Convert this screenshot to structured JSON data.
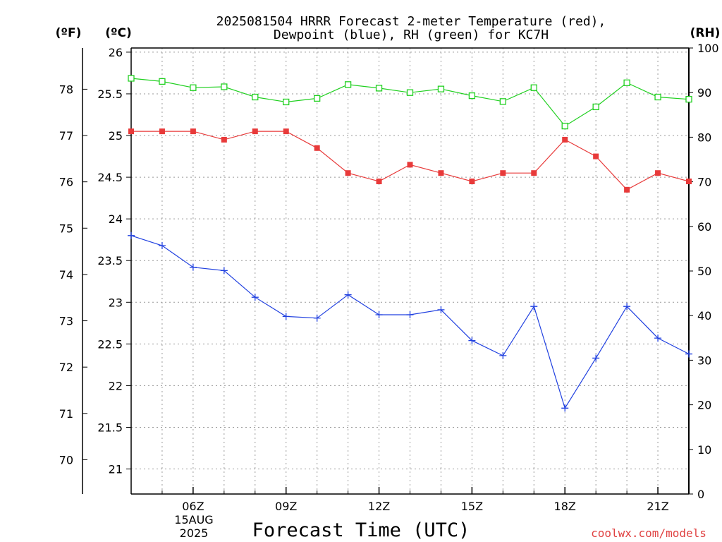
{
  "title_line1": "2025081504 HRRR Forecast 2-meter Temperature (red),",
  "title_line2": "Dewpoint (blue), RH (green) for KC7H",
  "axis_unit_f": "(ºF)",
  "axis_unit_c": "(ºC)",
  "axis_unit_rh": "(RH)",
  "x_axis_title": "Forecast Time (UTC)",
  "date_label_day": "15AUG",
  "date_label_year": "2025",
  "credit": "coolwx.com/models",
  "colors": {
    "temperature": "#e83a3a",
    "dewpoint": "#2040e0",
    "rh": "#20d020",
    "grid": "#999999",
    "credit": "#e04040"
  },
  "chart_data": {
    "type": "line",
    "x": [
      "04Z",
      "05Z",
      "06Z",
      "07Z",
      "08Z",
      "09Z",
      "10Z",
      "11Z",
      "12Z",
      "13Z",
      "14Z",
      "15Z",
      "16Z",
      "17Z",
      "18Z",
      "19Z",
      "20Z",
      "21Z",
      "22Z"
    ],
    "x_tick_labels": [
      "06Z",
      "09Z",
      "12Z",
      "15Z",
      "18Z",
      "21Z"
    ],
    "x_tick_hours": [
      6,
      9,
      12,
      15,
      18,
      21
    ],
    "y_left_celsius": {
      "ticks": [
        21,
        21.5,
        22,
        22.5,
        23,
        23.5,
        24,
        24.5,
        25,
        25.5,
        26
      ],
      "range": [
        20.7,
        26.05
      ]
    },
    "y_left_fahrenheit": {
      "ticks": [
        70,
        71,
        72,
        73,
        74,
        75,
        76,
        77,
        78
      ]
    },
    "y_right_rh": {
      "ticks": [
        0,
        10,
        20,
        30,
        40,
        50,
        60,
        70,
        80,
        90,
        100
      ],
      "range": [
        0,
        100
      ]
    },
    "series": [
      {
        "name": "Temperature",
        "axis": "celsius",
        "marker": "filled-square",
        "values": [
          25.05,
          25.05,
          25.05,
          24.95,
          25.05,
          25.05,
          24.85,
          24.55,
          24.45,
          24.65,
          24.55,
          24.45,
          24.55,
          24.55,
          24.95,
          24.75,
          24.35,
          24.55,
          24.45
        ]
      },
      {
        "name": "Dewpoint",
        "axis": "celsius",
        "marker": "plus",
        "values": [
          23.8,
          23.68,
          23.42,
          23.38,
          23.06,
          22.83,
          22.81,
          23.09,
          22.85,
          22.85,
          22.91,
          22.54,
          22.36,
          22.95,
          21.73,
          22.33,
          22.95,
          22.57,
          22.38
        ]
      },
      {
        "name": "RH",
        "axis": "rh",
        "marker": "open-square",
        "values": [
          93.2,
          92.5,
          91.1,
          91.3,
          89.0,
          87.9,
          88.7,
          91.8,
          91.0,
          90.0,
          90.8,
          89.3,
          88.0,
          91.1,
          82.5,
          86.8,
          92.2,
          89.0,
          88.5
        ]
      }
    ]
  }
}
